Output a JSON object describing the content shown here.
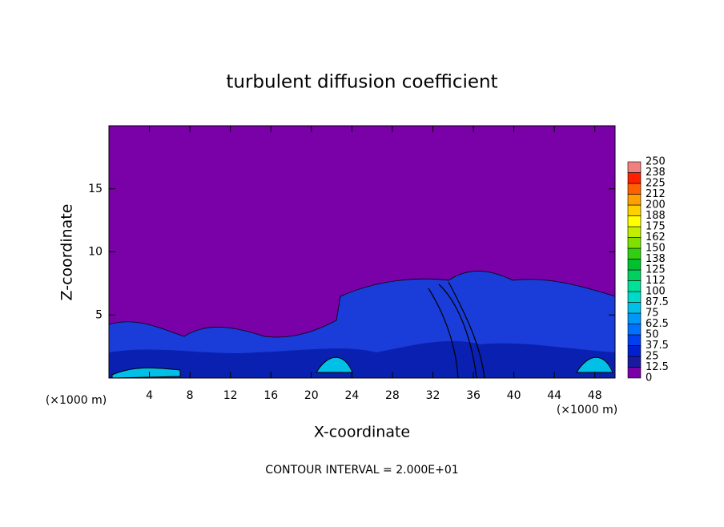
{
  "chart_data": {
    "type": "contour",
    "title": "turbulent diffusion coefficient",
    "xlabel": "X-coordinate",
    "ylabel": "Z-coordinate",
    "x_unit": "(×1000 m)",
    "y_unit": "(×1000 m)",
    "note": "CONTOUR INTERVAL = 2.000E+01",
    "xlim": [
      0,
      50
    ],
    "xticks": [
      4,
      8,
      12,
      16,
      20,
      24,
      28,
      32,
      36,
      40,
      44,
      48
    ],
    "ylim": [
      0,
      20
    ],
    "yticks": [
      5,
      10,
      15
    ],
    "colorbar": {
      "lim": [
        0,
        250
      ],
      "ticks": [
        0,
        12.5,
        25,
        37.5,
        50,
        62.5,
        75,
        87.5,
        100,
        {
          "value": 112.5,
          "label": "112"
        },
        125,
        {
          "value": 137.5,
          "label": "138"
        },
        150,
        {
          "value": 162.5,
          "label": "162"
        },
        175,
        {
          "value": 187.5,
          "label": "188"
        },
        200,
        {
          "value": 212.5,
          "label": "212"
        },
        225,
        {
          "value": 237.5,
          "label": "238"
        },
        250
      ],
      "colors": [
        "#7a00a8",
        "#1a1aa0",
        "#0020d0",
        "#0040f0",
        "#0070ff",
        "#0098f8",
        "#00c0e8",
        "#00d8c8",
        "#00e098",
        "#00d060",
        "#00c030",
        "#30d010",
        "#80e000",
        "#c0f000",
        "#ffff00",
        "#ffd000",
        "#ffa000",
        "#ff6000",
        "#ff2000",
        "#f08080"
      ]
    }
  }
}
